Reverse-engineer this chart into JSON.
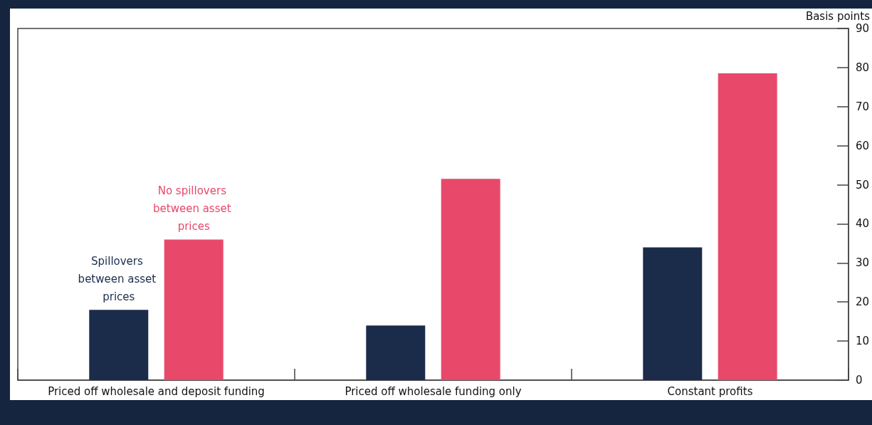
{
  "chart_data": {
    "type": "bar",
    "ylabel": "Basis points",
    "categories": [
      "Priced off wholesale and deposit funding",
      "Priced off wholesale funding only",
      "Constant profits"
    ],
    "series": [
      {
        "name": "Spillovers between asset prices",
        "color": "#1b2c4a",
        "values": [
          18,
          14,
          34
        ]
      },
      {
        "name": "No spillovers between asset prices",
        "color": "#e8496a",
        "values": [
          36,
          51.5,
          78.5
        ]
      }
    ],
    "ylim": [
      0,
      90
    ],
    "yticks": [
      0,
      10,
      20,
      30,
      40,
      50,
      60,
      70,
      80,
      90
    ],
    "grid": false,
    "legend": false
  }
}
